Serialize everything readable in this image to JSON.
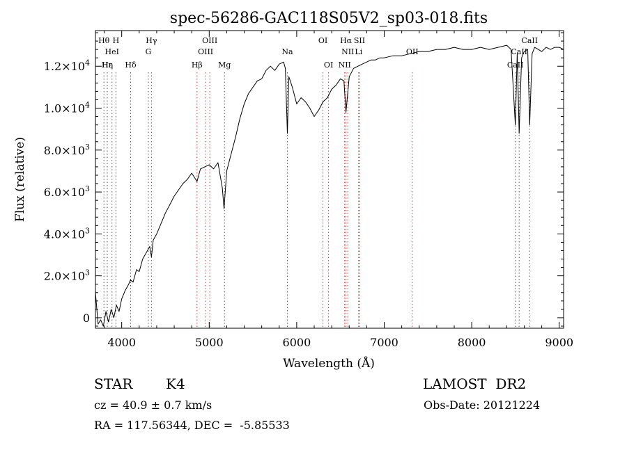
{
  "chart_data": {
    "type": "line",
    "title": "spec-56286-GAC118S05V2_sp03-018.fits",
    "xlabel": "Wavelength (Å)",
    "ylabel": "Flux (relative)",
    "xlim": [
      3700,
      9050
    ],
    "ylim": [
      -500,
      13700
    ],
    "xticks": [
      4000,
      5000,
      6000,
      7000,
      8000,
      9000
    ],
    "xtick_labels": [
      "4000",
      "5000",
      "6000",
      "7000",
      "8000",
      "9000"
    ],
    "yticks": [
      0,
      2000,
      4000,
      6000,
      8000,
      10000,
      12000
    ],
    "ytick_labels": [
      {
        "base": "0",
        "exp": ""
      },
      {
        "base": "2.0×10",
        "exp": "3"
      },
      {
        "base": "4.0×10",
        "exp": "3"
      },
      {
        "base": "6.0×10",
        "exp": "3"
      },
      {
        "base": "8.0×10",
        "exp": "3"
      },
      {
        "base": "1.0×10",
        "exp": "4"
      },
      {
        "base": "1.2×10",
        "exp": "4"
      }
    ],
    "spectrum": {
      "x": [
        3700,
        3730,
        3760,
        3790,
        3820,
        3850,
        3880,
        3910,
        3940,
        3970,
        4000,
        4040,
        4080,
        4100,
        4130,
        4170,
        4200,
        4240,
        4280,
        4320,
        4340,
        4360,
        4400,
        4450,
        4500,
        4550,
        4600,
        4650,
        4700,
        4750,
        4800,
        4861,
        4900,
        4950,
        5000,
        5050,
        5100,
        5150,
        5170,
        5200,
        5250,
        5300,
        5350,
        5400,
        5450,
        5500,
        5550,
        5600,
        5650,
        5700,
        5750,
        5800,
        5850,
        5870,
        5893,
        5910,
        5950,
        6000,
        6050,
        6100,
        6150,
        6200,
        6250,
        6300,
        6350,
        6400,
        6450,
        6500,
        6540,
        6563,
        6600,
        6650,
        6700,
        6750,
        6800,
        6850,
        6900,
        6950,
        7000,
        7100,
        7200,
        7300,
        7400,
        7500,
        7600,
        7700,
        7800,
        7900,
        8000,
        8100,
        8200,
        8300,
        8400,
        8450,
        8498,
        8520,
        8542,
        8570,
        8600,
        8640,
        8662,
        8690,
        8720,
        8760,
        8800,
        8850,
        8900,
        8950,
        9000,
        9050
      ],
      "y": [
        1200,
        -300,
        -100,
        -400,
        300,
        -200,
        400,
        0,
        600,
        300,
        900,
        1300,
        1600,
        1800,
        1700,
        2300,
        2200,
        2800,
        3100,
        3400,
        2900,
        3700,
        4000,
        4500,
        5000,
        5400,
        5800,
        6100,
        6400,
        6600,
        6900,
        6500,
        7100,
        7200,
        7300,
        7100,
        7400,
        6200,
        5200,
        7000,
        7800,
        8600,
        9500,
        10200,
        10700,
        11000,
        11300,
        11400,
        11800,
        12000,
        11800,
        12100,
        12200,
        11900,
        8800,
        11500,
        11000,
        10200,
        10500,
        10300,
        10000,
        9600,
        9900,
        10300,
        10500,
        10900,
        11100,
        11400,
        11300,
        9800,
        11500,
        11900,
        12000,
        12100,
        12200,
        12300,
        12300,
        12400,
        12400,
        12500,
        12500,
        12600,
        12700,
        12700,
        12800,
        12800,
        12900,
        12800,
        12800,
        12900,
        12800,
        12900,
        13000,
        12800,
        9200,
        12600,
        8800,
        12400,
        12700,
        12800,
        9200,
        12600,
        12900,
        12800,
        12700,
        12900,
        12800,
        12900,
        12900,
        12800
      ]
    },
    "lines": [
      {
        "label": "Hθ",
        "wave": 3797,
        "row": 0,
        "color": "#555555"
      },
      {
        "label": "H",
        "wave": 3934,
        "row": 0,
        "color": "#555555"
      },
      {
        "label": "Hγ",
        "wave": 4340,
        "row": 0,
        "color": "#d03030"
      },
      {
        "label": "OIII",
        "wave": 5007,
        "row": 0,
        "color": "#d03030"
      },
      {
        "label": "OI",
        "wave": 6300,
        "row": 0,
        "color": "#d03030"
      },
      {
        "label": "Hα",
        "wave": 6563,
        "row": 0,
        "color": "#d03030"
      },
      {
        "label": "SII",
        "wave": 6717,
        "row": 0,
        "color": "#d03030"
      },
      {
        "label": "CaII",
        "wave": 8662,
        "row": 0,
        "color": "#555555"
      },
      {
        "label": "HeI",
        "wave": 3889,
        "row": 1,
        "color": "#555555"
      },
      {
        "label": "G",
        "wave": 4305,
        "row": 1,
        "color": "#555555"
      },
      {
        "label": "OIII",
        "wave": 4959,
        "row": 1,
        "color": "#d03030"
      },
      {
        "label": "Na",
        "wave": 5893,
        "row": 1,
        "color": "#555555"
      },
      {
        "label": "NII",
        "wave": 6584,
        "row": 1,
        "color": "#d03030"
      },
      {
        "label": "Li",
        "wave": 6708,
        "row": 1,
        "color": "#555555"
      },
      {
        "label": "OII",
        "wave": 7320,
        "row": 1,
        "color": "#d03030"
      },
      {
        "label": "CaII",
        "wave": 8542,
        "row": 1,
        "color": "#555555"
      },
      {
        "label": "Hε",
        "wave": 3835,
        "row": 2,
        "color": "#555555"
      },
      {
        "label": "Hη",
        "wave": 3835,
        "row": 2,
        "color": "#555555"
      },
      {
        "label": "Hδ",
        "wave": 4102,
        "row": 2,
        "color": "#555555"
      },
      {
        "label": "Hβ",
        "wave": 4861,
        "row": 2,
        "color": "#d03030"
      },
      {
        "label": "Mg",
        "wave": 5175,
        "row": 2,
        "color": "#555555"
      },
      {
        "label": "OI",
        "wave": 6364,
        "row": 2,
        "color": "#d03030"
      },
      {
        "label": "NII",
        "wave": 6548,
        "row": 2,
        "color": "#d03030"
      },
      {
        "label": "CaII",
        "wave": 8498,
        "row": 2,
        "color": "#555555"
      }
    ],
    "grid": false
  },
  "info": {
    "star_type": "STAR",
    "subclass": "K4",
    "survey": "LAMOST  DR2",
    "cz": "cz = 40.9 ± 0.7 km/s",
    "obs_date": "Obs-Date: 20121224",
    "coords": "RA = 117.56344, DEC =  -5.85533"
  }
}
